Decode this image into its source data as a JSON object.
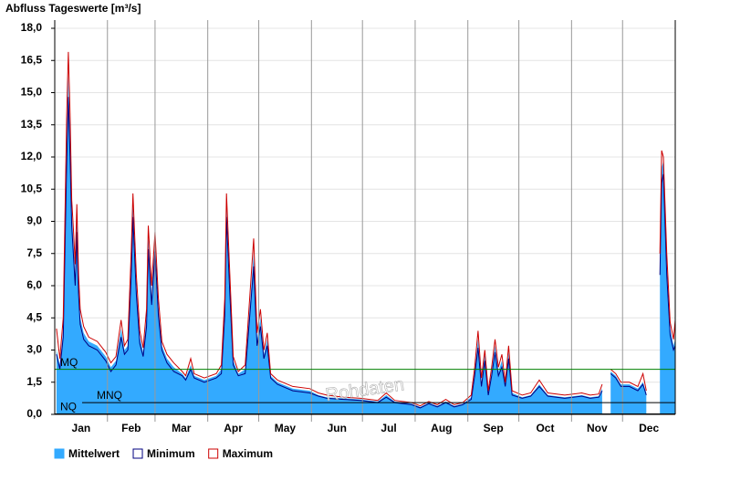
{
  "chart_data": {
    "type": "area",
    "title": "Abfluss Tageswerte [m³/s]",
    "watermark": "Rohdaten",
    "x": [
      1,
      3,
      5,
      7,
      8,
      9,
      10,
      11,
      12,
      13,
      14,
      15,
      17,
      20,
      25,
      30,
      33,
      36,
      39,
      41,
      43,
      45,
      46,
      48,
      50,
      52,
      54,
      55,
      57,
      59,
      61,
      63,
      66,
      70,
      75,
      77,
      80,
      82,
      88,
      95,
      98,
      100,
      101,
      103,
      105,
      108,
      112,
      117,
      119,
      121,
      123,
      125,
      127,
      131,
      140,
      150,
      155,
      160,
      170,
      180,
      190,
      195,
      200,
      210,
      215,
      220,
      225,
      230,
      235,
      240,
      245,
      247,
      249,
      251,
      253,
      255,
      257,
      259,
      261,
      263,
      265,
      267,
      269,
      275,
      280,
      285,
      290,
      300,
      310,
      315,
      320,
      322,
      323,
      327,
      330,
      333,
      338,
      343,
      346,
      348,
      352,
      356,
      357,
      358,
      360,
      362,
      364,
      365
    ],
    "xlim": [
      0,
      365
    ],
    "xticks": [
      {
        "value": 0,
        "label": "Jan"
      },
      {
        "value": 31,
        "label": "Feb"
      },
      {
        "value": 59,
        "label": "Mar"
      },
      {
        "value": 90,
        "label": "Apr"
      },
      {
        "value": 120,
        "label": "May"
      },
      {
        "value": 151,
        "label": "Jun"
      },
      {
        "value": 181,
        "label": "Jul"
      },
      {
        "value": 212,
        "label": "Aug"
      },
      {
        "value": 243,
        "label": "Sep"
      },
      {
        "value": 273,
        "label": "Oct"
      },
      {
        "value": 304,
        "label": "Nov"
      },
      {
        "value": 334,
        "label": "Dec"
      }
    ],
    "ylim": [
      0,
      18
    ],
    "yticks": [
      {
        "value": 0,
        "label": "0,0"
      },
      {
        "value": 1.5,
        "label": "1,5"
      },
      {
        "value": 3,
        "label": "3,0"
      },
      {
        "value": 4.5,
        "label": "4,5"
      },
      {
        "value": 6,
        "label": "6,0"
      },
      {
        "value": 7.5,
        "label": "7,5"
      },
      {
        "value": 9,
        "label": "9,0"
      },
      {
        "value": 10.5,
        "label": "10,5"
      },
      {
        "value": 12,
        "label": "12,0"
      },
      {
        "value": 13.5,
        "label": "13,5"
      },
      {
        "value": 15,
        "label": "15,0"
      },
      {
        "value": 16.5,
        "label": "16,5"
      },
      {
        "value": 18,
        "label": "18,0"
      }
    ],
    "grid": true,
    "reference_lines": [
      {
        "label": "MQ",
        "value": 2.1,
        "color": "#008000"
      },
      {
        "label": "MNQ",
        "value": 0.55,
        "color": "#000000"
      },
      {
        "label": "NQ",
        "value": 0.02,
        "color": "#000000"
      }
    ],
    "series": [
      {
        "name": "Mittelwert",
        "color": "#33aaff",
        "values": [
          3.0,
          2.3,
          4.0,
          12.5,
          15.8,
          13.0,
          9.5,
          8.0,
          6.5,
          9.2,
          6.0,
          4.5,
          3.8,
          3.4,
          3.2,
          2.7,
          2.2,
          2.5,
          4.0,
          3.0,
          3.2,
          7.0,
          9.8,
          6.0,
          3.6,
          2.9,
          4.5,
          8.3,
          5.5,
          8.2,
          5.0,
          3.2,
          2.6,
          2.2,
          1.9,
          1.7,
          2.3,
          1.8,
          1.6,
          1.8,
          2.1,
          5.0,
          9.8,
          6.0,
          2.5,
          1.9,
          2.1,
          7.5,
          3.5,
          4.5,
          2.8,
          3.5,
          1.8,
          1.5,
          1.2,
          1.1,
          0.9,
          0.8,
          0.75,
          0.7,
          0.6,
          0.9,
          0.6,
          0.5,
          0.35,
          0.55,
          0.4,
          0.6,
          0.4,
          0.5,
          0.8,
          2.0,
          3.5,
          1.5,
          2.8,
          1.0,
          2.0,
          3.2,
          2.0,
          2.5,
          1.4,
          2.9,
          1.0,
          0.8,
          0.9,
          1.4,
          0.9,
          0.8,
          0.9,
          0.8,
          0.85,
          1.2,
          null,
          2.0,
          1.8,
          1.4,
          1.4,
          1.2,
          1.5,
          1.0,
          null,
          7.0,
          11.5,
          11.8,
          7.0,
          4.0,
          3.2,
          3.5
        ]
      },
      {
        "name": "Minimum",
        "color": "#000080",
        "values": [
          2.8,
          2.1,
          3.6,
          11.5,
          14.8,
          12.0,
          8.8,
          7.4,
          6.0,
          8.5,
          5.6,
          4.2,
          3.5,
          3.2,
          3.0,
          2.5,
          2.0,
          2.3,
          3.6,
          2.8,
          3.0,
          6.4,
          9.2,
          5.6,
          3.3,
          2.7,
          4.1,
          7.7,
          5.1,
          7.6,
          4.6,
          3.0,
          2.4,
          2.0,
          1.8,
          1.6,
          2.1,
          1.7,
          1.5,
          1.7,
          1.9,
          4.6,
          9.2,
          5.6,
          2.3,
          1.8,
          1.9,
          6.9,
          3.2,
          4.1,
          2.6,
          3.2,
          1.7,
          1.4,
          1.1,
          1.0,
          0.85,
          0.75,
          0.7,
          0.65,
          0.55,
          0.8,
          0.55,
          0.45,
          0.3,
          0.5,
          0.35,
          0.55,
          0.35,
          0.45,
          0.7,
          1.8,
          3.1,
          1.3,
          2.5,
          0.9,
          1.8,
          2.9,
          1.8,
          2.2,
          1.3,
          2.6,
          0.9,
          0.75,
          0.85,
          1.3,
          0.85,
          0.75,
          0.85,
          0.75,
          0.8,
          1.1,
          null,
          1.9,
          1.7,
          1.3,
          1.3,
          1.1,
          1.4,
          0.9,
          null,
          6.5,
          10.8,
          11.2,
          6.5,
          3.7,
          3.0,
          3.2
        ]
      },
      {
        "name": "Maximum",
        "color": "#cc0000",
        "values": [
          4.0,
          2.6,
          4.5,
          13.8,
          16.9,
          14.0,
          10.0,
          8.6,
          7.0,
          9.8,
          6.5,
          4.9,
          4.1,
          3.6,
          3.4,
          2.9,
          2.4,
          2.7,
          4.4,
          3.2,
          3.5,
          7.6,
          10.3,
          6.5,
          3.9,
          3.1,
          4.9,
          8.8,
          6.0,
          8.5,
          5.4,
          3.4,
          2.8,
          2.4,
          2.0,
          1.8,
          2.6,
          1.9,
          1.7,
          1.9,
          2.3,
          5.4,
          10.3,
          6.5,
          2.7,
          2.0,
          2.3,
          8.2,
          3.8,
          4.9,
          3.0,
          3.8,
          1.9,
          1.6,
          1.3,
          1.2,
          1.0,
          0.9,
          0.8,
          0.75,
          0.65,
          1.0,
          0.65,
          0.55,
          0.4,
          0.6,
          0.45,
          0.7,
          0.45,
          0.55,
          0.9,
          2.2,
          3.9,
          1.7,
          3.0,
          1.1,
          2.2,
          3.5,
          2.2,
          2.8,
          1.5,
          3.2,
          1.1,
          0.9,
          1.0,
          1.6,
          1.0,
          0.9,
          1.0,
          0.9,
          0.95,
          1.4,
          null,
          2.1,
          1.9,
          1.5,
          1.5,
          1.3,
          1.9,
          1.1,
          null,
          7.5,
          12.3,
          12.0,
          7.5,
          4.3,
          3.5,
          4.4
        ]
      }
    ]
  }
}
